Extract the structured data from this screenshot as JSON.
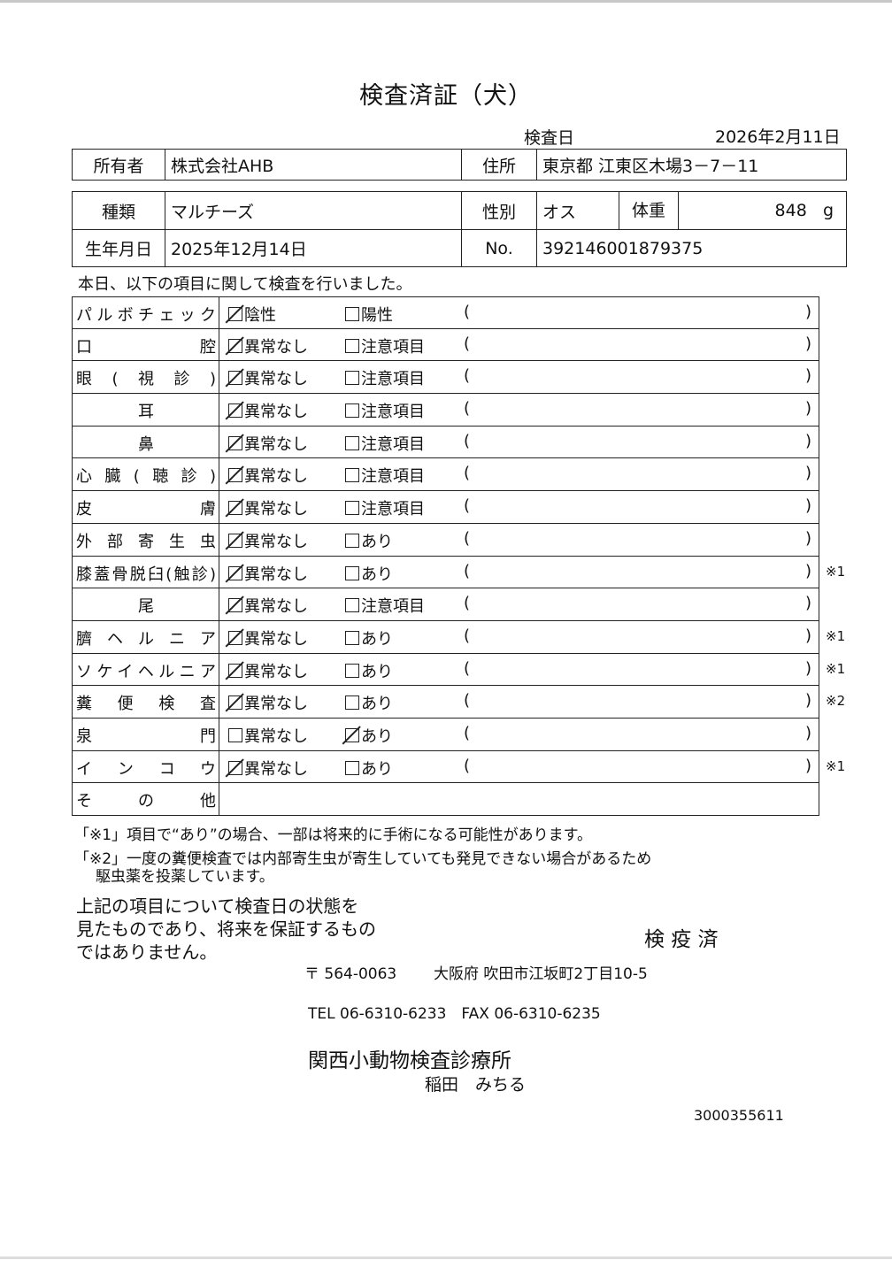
{
  "title": "検査済証（犬）",
  "exam_date_label": "検査日",
  "exam_date": "2026年2月11日",
  "owner": {
    "label": "所有者",
    "value": "株式会社AHB"
  },
  "address": {
    "label": "住所",
    "value": "東京都 江東区木場3－7－11"
  },
  "breed": {
    "label": "種類",
    "value": "マルチーズ"
  },
  "sex": {
    "label": "性別",
    "value": "オス"
  },
  "weight": {
    "label": "体重",
    "value": "848",
    "unit": "g"
  },
  "birth": {
    "label": "生年月日",
    "value": "2025年12月14日"
  },
  "number": {
    "label": "No.",
    "value": "392146001879375"
  },
  "intro": "本日、以下の項目に関して検査を行いました。",
  "items": [
    {
      "label": "パルボチェック",
      "opt1": "陰性",
      "opt2": "陽性",
      "checked": 1,
      "note": ""
    },
    {
      "label": "口腔",
      "opt1": "異常なし",
      "opt2": "注意項目",
      "checked": 1,
      "note": ""
    },
    {
      "label": "眼(視診)",
      "opt1": "異常なし",
      "opt2": "注意項目",
      "checked": 1,
      "note": ""
    },
    {
      "label": "耳",
      "opt1": "異常なし",
      "opt2": "注意項目",
      "checked": 1,
      "note": ""
    },
    {
      "label": "鼻",
      "opt1": "異常なし",
      "opt2": "注意項目",
      "checked": 1,
      "note": ""
    },
    {
      "label": "心臓(聴診)",
      "opt1": "異常なし",
      "opt2": "注意項目",
      "checked": 1,
      "note": ""
    },
    {
      "label": "皮膚",
      "opt1": "異常なし",
      "opt2": "注意項目",
      "checked": 1,
      "note": ""
    },
    {
      "label": "外部寄生虫",
      "opt1": "異常なし",
      "opt2": "あり",
      "checked": 1,
      "note": ""
    },
    {
      "label": "膝蓋骨脱臼(触診)",
      "opt1": "異常なし",
      "opt2": "あり",
      "checked": 1,
      "note": "※1"
    },
    {
      "label": "尾",
      "opt1": "異常なし",
      "opt2": "注意項目",
      "checked": 1,
      "note": ""
    },
    {
      "label": "臍ヘルニア",
      "opt1": "異常なし",
      "opt2": "あり",
      "checked": 1,
      "note": "※1"
    },
    {
      "label": "ソケイヘルニア",
      "opt1": "異常なし",
      "opt2": "あり",
      "checked": 1,
      "note": "※1"
    },
    {
      "label": "糞便検査",
      "opt1": "異常なし",
      "opt2": "あり",
      "checked": 1,
      "note": "※2"
    },
    {
      "label": "泉門",
      "opt1": "異常なし",
      "opt2": "あり",
      "checked": 2,
      "note": ""
    },
    {
      "label": "インコウ",
      "opt1": "異常なし",
      "opt2": "あり",
      "checked": 1,
      "note": "※1"
    },
    {
      "label": "その他",
      "opt1": "",
      "opt2": "",
      "checked": 0,
      "note": ""
    }
  ],
  "footnote1": "「※1」項目で“あり”の場合、一部は将来的に手術になる可能性があります。",
  "footnote2a": "「※2」一度の糞便検査では内部寄生虫が寄生していても発見できない場合があるため",
  "footnote2b": "駆虫薬を投薬しています。",
  "disclaimer": [
    "上記の項目について検査日の状態を",
    "見たものであり、将来を保証するもの",
    "ではありません。"
  ],
  "stamp": "検 疫 済",
  "clinic": {
    "postal": "〒 564-0063",
    "address": "大阪府 吹田市江坂町2丁目10-5",
    "phone": "TEL 06-6310-6233　FAX 06-6310-6235",
    "name": "関西小動物検査診療所",
    "doctor": "稲田　みちる"
  },
  "doc_id": "3000355611"
}
